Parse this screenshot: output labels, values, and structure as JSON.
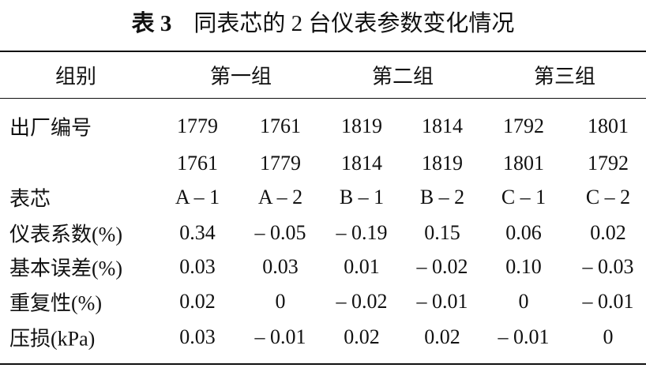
{
  "title": {
    "label": "表 3",
    "text": "同表芯的 2 台仪表参数变化情况"
  },
  "table": {
    "header": [
      "组别",
      "第一组",
      "第二组",
      "第三组"
    ],
    "rows": [
      [
        "出厂编号",
        "1779",
        "1761",
        "1819",
        "1814",
        "1792",
        "1801"
      ],
      [
        null,
        "1761",
        "1779",
        "1814",
        "1819",
        "1801",
        "1792"
      ],
      [
        "表芯",
        "A – 1",
        "A – 2",
        "B – 1",
        "B – 2",
        "C – 1",
        "C – 2"
      ],
      [
        "仪表系数(%)",
        "0.34",
        "– 0.05",
        "– 0.19",
        "0.15",
        "0.06",
        "0.02"
      ],
      [
        "基本误差(%)",
        "0.03",
        "0.03",
        "0.01",
        "– 0.02",
        "0.10",
        "– 0.03"
      ],
      [
        "重复性(%)",
        "0.02",
        "0",
        "– 0.02",
        "– 0.01",
        "0",
        "– 0.01"
      ],
      [
        "压损(kPa)",
        "0.03",
        "– 0.01",
        "0.02",
        "0.02",
        "– 0.01",
        "0"
      ]
    ]
  }
}
